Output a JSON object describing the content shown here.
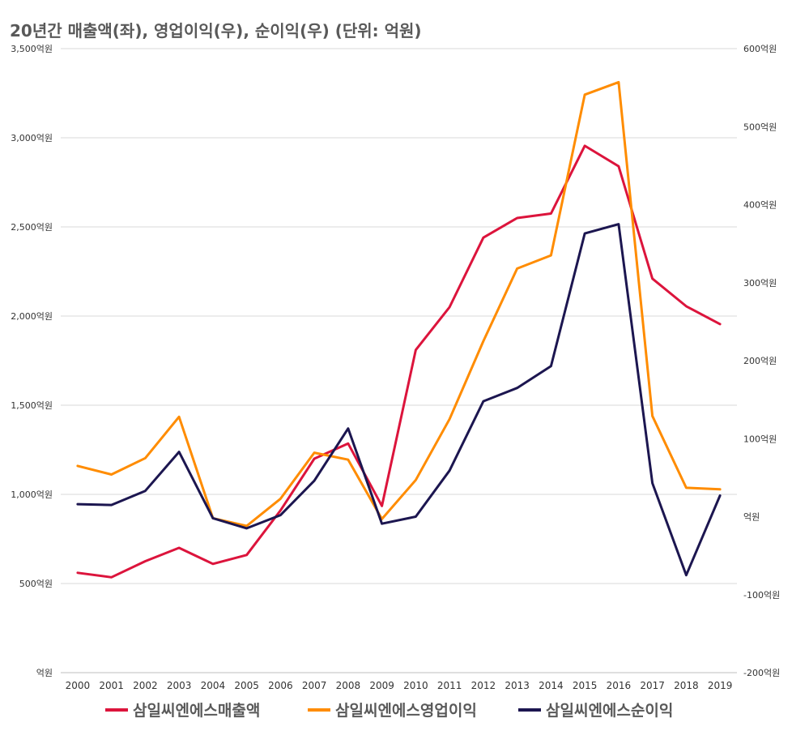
{
  "chart_data": {
    "type": "line",
    "title": "20년간 매출액(좌), 영업이익(우), 순이익(우) (단위: 억원)",
    "categories": [
      "2000",
      "2001",
      "2002",
      "2003",
      "2004",
      "2005",
      "2006",
      "2007",
      "2008",
      "2009",
      "2010",
      "2011",
      "2012",
      "2013",
      "2014",
      "2015",
      "2016",
      "2017",
      "2018",
      "2019"
    ],
    "left_axis": {
      "ylim": [
        0,
        3500
      ],
      "ticks": [
        0,
        500,
        1000,
        1500,
        2000,
        2500,
        3000,
        3500
      ],
      "tick_labels": [
        "억원",
        "500억원",
        "1,000억원",
        "1,500억원",
        "2,000억원",
        "2,500억원",
        "3,000억원",
        "3,500억원"
      ]
    },
    "right_axis": {
      "ylim": [
        -200,
        600
      ],
      "ticks": [
        -200,
        -100,
        0,
        100,
        200,
        300,
        400,
        500,
        600
      ],
      "tick_labels": [
        "-200억원",
        "-100억원",
        "억원",
        "100억원",
        "200억원",
        "300억원",
        "400억원",
        "500억원",
        "600억원"
      ]
    },
    "series": [
      {
        "name": "삼일씨엔에스매출액",
        "axis": "left",
        "color": "#dc143c",
        "values": [
          560,
          535,
          625,
          700,
          610,
          660,
          910,
          1200,
          1285,
          935,
          1810,
          2050,
          2440,
          2550,
          2575,
          2955,
          2840,
          2210,
          2055,
          1955
        ]
      },
      {
        "name": "삼일씨엔에스영업이익",
        "axis": "right",
        "color": "#ff8c00",
        "values": [
          65,
          54,
          75,
          128,
          -2,
          -12,
          23,
          82,
          73,
          -3,
          47,
          125,
          225,
          318,
          335,
          541,
          557,
          129,
          37,
          35
        ]
      },
      {
        "name": "삼일씨엔에스순이익",
        "axis": "right",
        "color": "#1c1650",
        "values": [
          16,
          15,
          33,
          83,
          -2,
          -15,
          2,
          46,
          113,
          -9,
          0,
          59,
          148,
          165,
          193,
          363,
          375,
          43,
          -75,
          27
        ]
      }
    ]
  }
}
